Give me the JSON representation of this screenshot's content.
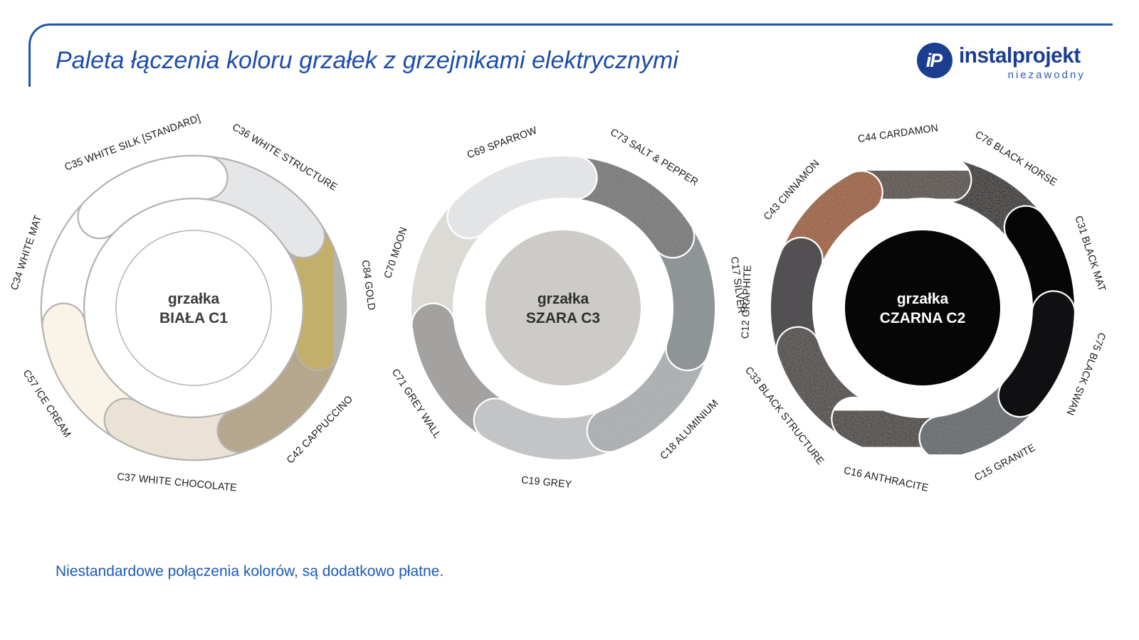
{
  "header": {
    "title": "Paleta łączenia koloru grzałek z grzejnikami elektrycznymi",
    "title_color": "#1d4da8",
    "rule_color": "#2157ae",
    "logo": {
      "monogram": "iP",
      "wordmark": "instalprojekt",
      "tagline": "niezawodny",
      "color": "#1b3e91",
      "tagline_color": "#2e5cb8"
    }
  },
  "footer": {
    "note": "Niestandardowe połączenia kolorów, są dodatkowo płatne.",
    "color": "#1d5ab4"
  },
  "chart_data": {
    "type": "palette-rings",
    "description": "Trzy pierścienie pokazujące kolory grzałek łączone z grzejnikami: biała C1, szara C3, czarna C2",
    "rings": [
      {
        "id": "biala-c1",
        "center_label_line1": "grzałka",
        "center_label_line2": "BIAŁA C1",
        "center_fill": "#ffffff",
        "center_stroke": "#b5b3b0",
        "center_text_color": "#3b3b3b",
        "segment_outline": "#b5b3b0",
        "start_angle": -46,
        "segments": [
          {
            "code": "C35",
            "label": "C35 WHITE SILK [STANDARD]",
            "color": "#ffffff",
            "grain": false
          },
          {
            "code": "C36",
            "label": "C36 WHITE STRUCTURE",
            "color": "#e9ebee",
            "grain": true
          },
          {
            "code": "C84",
            "label": "C84 GOLD",
            "color": "#c2aa4f",
            "grain": true
          },
          {
            "code": "C42",
            "label": "C42 CAPPUCCINO",
            "color": "#b2a181",
            "grain": true
          },
          {
            "code": "C37",
            "label": "C37 WHITE CHOCOLATE",
            "color": "#eae3d5",
            "grain": false
          },
          {
            "code": "C57",
            "label": "C57 ICE CREAM",
            "color": "#faf4e8",
            "grain": false
          },
          {
            "code": "C34",
            "label": "C34 WHITE MAT",
            "color": "#ffffff",
            "grain": false
          }
        ],
        "draw_order": [
          6,
          5,
          4,
          3,
          2,
          1,
          0
        ]
      },
      {
        "id": "szara-c3",
        "center_label_line1": "grzałka",
        "center_label_line2": "SZARA C3",
        "center_fill": "#cccbc7",
        "center_stroke": "none",
        "center_text_color": "#2f2f2f",
        "segment_outline": "#ffffff",
        "start_angle": -46,
        "segments": [
          {
            "code": "C69",
            "label": "C69 SPARROW",
            "color": "#e3e4e6",
            "grain": false
          },
          {
            "code": "C73",
            "label": "C73 SALT & PEPPER",
            "color": "#6f7073",
            "grain": true
          },
          {
            "code": "C17",
            "label": "C17 SILVER",
            "color": "#8f9497",
            "grain": false
          },
          {
            "code": "C18",
            "label": "C18 ALUMINIUM",
            "color": "#a9adb0",
            "grain": true
          },
          {
            "code": "C19",
            "label": "C19 GREY",
            "color": "#c3c4c6",
            "grain": false
          },
          {
            "code": "C71",
            "label": "C71 GREY WALL",
            "color": "#a3a2a0",
            "grain": false
          },
          {
            "code": "C70",
            "label": "C70 MOON",
            "color": "#dcdad4",
            "grain": false
          }
        ],
        "draw_order": [
          6,
          5,
          4,
          3,
          2,
          1,
          0
        ]
      },
      {
        "id": "czarna-c2",
        "center_label_line1": "grzałka",
        "center_label_line2": "CZARNA C2",
        "center_fill": "#060606",
        "center_stroke": "none",
        "center_text_color": "#ffffff",
        "segment_outline": "#ffffff",
        "start_angle": -28,
        "segments": [
          {
            "code": "C44",
            "label": "C44 CARDAMON",
            "color": "#48403a",
            "grain": true
          },
          {
            "code": "C76",
            "label": "C76 BLACK HORSE",
            "color": "#0d0d0d",
            "grain": true
          },
          {
            "code": "C31",
            "label": "C31 BLACK MAT",
            "color": "#050505",
            "grain": false
          },
          {
            "code": "C75",
            "label": "C75 BLACK SWAN",
            "color": "#101012",
            "grain": false
          },
          {
            "code": "C15",
            "label": "C15 GRANITE",
            "color": "#565d64",
            "grain": true
          },
          {
            "code": "C16",
            "label": "C16 ANTHRACITE",
            "color": "#35302d",
            "grain": true
          },
          {
            "code": "C33",
            "label": "C33 BLACK STRUCTURE",
            "color": "#3b3634",
            "grain": true
          },
          {
            "code": "C12",
            "label": "C12 GRAPHITE",
            "color": "#525053",
            "grain": false
          },
          {
            "code": "C43",
            "label": "C43 CINNAMON",
            "color": "#9a5420",
            "grain": true
          }
        ],
        "draw_order": [
          1,
          2,
          0,
          8,
          7,
          6,
          5,
          4,
          3
        ]
      }
    ]
  }
}
